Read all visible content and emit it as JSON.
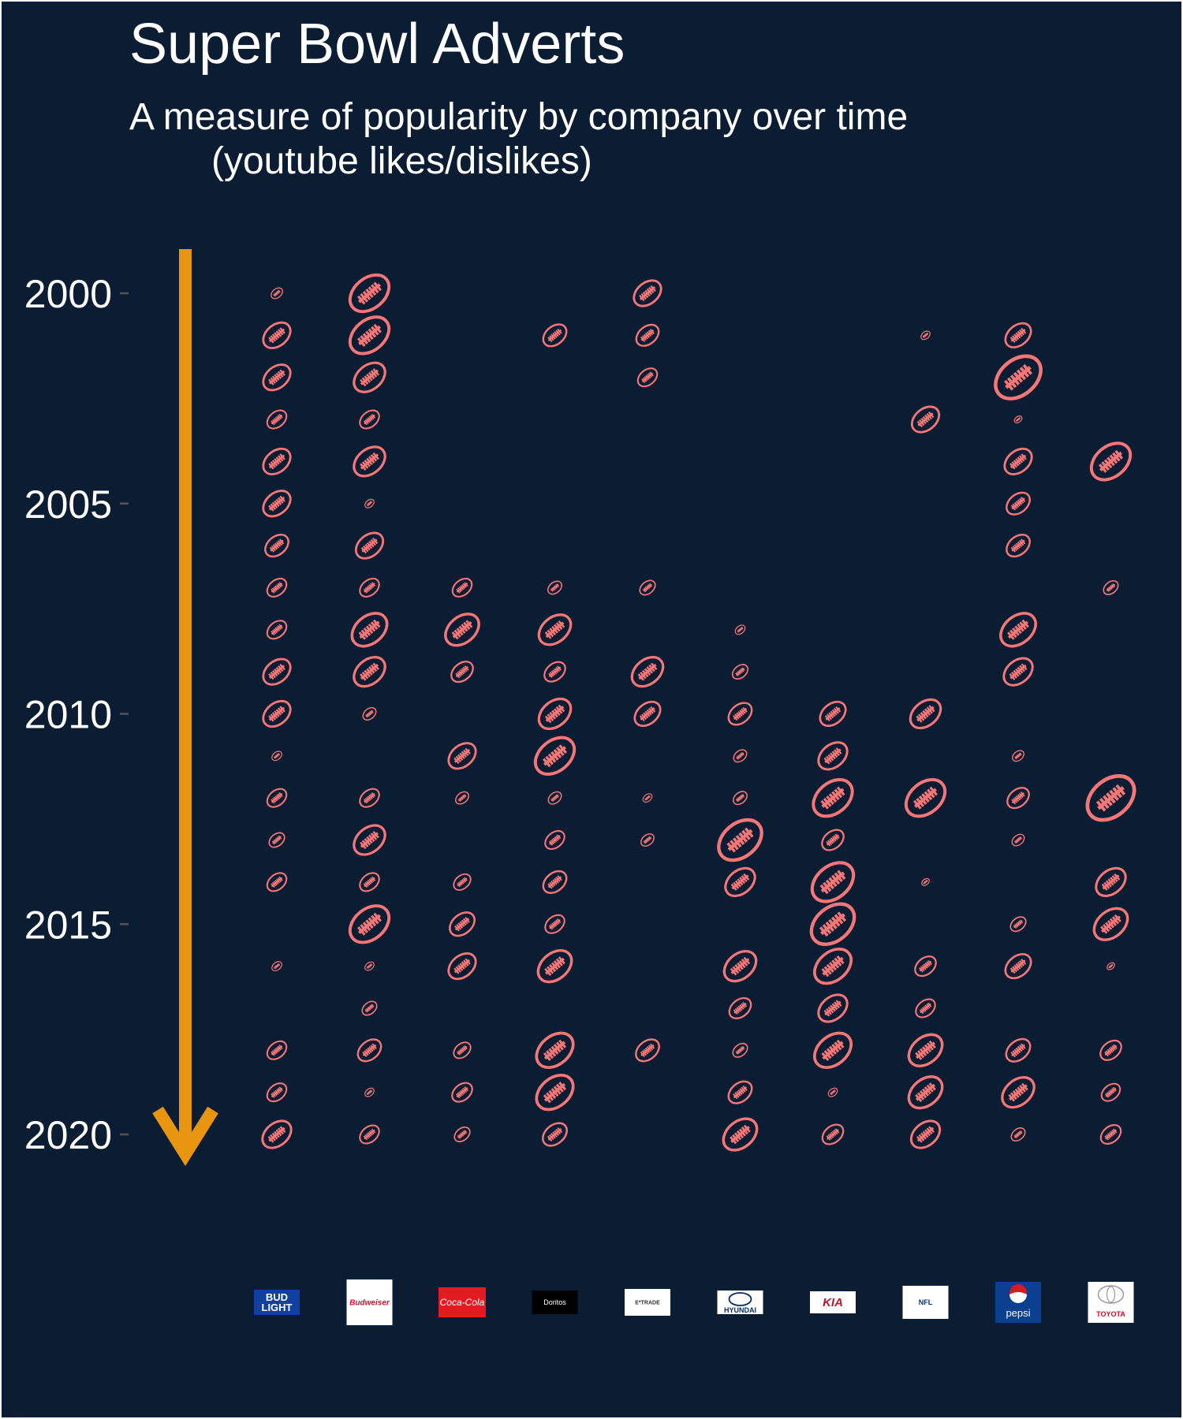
{
  "chart_data": {
    "type": "scatter",
    "title": "Super Bowl Adverts",
    "subtitle_line1": "A measure of popularity by company over time",
    "subtitle_line2": "(youtube likes/dislikes)",
    "y_axis": {
      "ticks": [
        2000,
        2005,
        2010,
        2015,
        2020
      ],
      "reversed": true,
      "ylim": [
        2000,
        2020
      ]
    },
    "marker": "american-football",
    "colors": {
      "background": "#0b1d33",
      "marker": "#f47676",
      "arrow": "#e8950f",
      "tick_text": "#ffffff",
      "tick_mark": "#555555"
    },
    "companies": [
      {
        "name": "Bud Light",
        "logo_text": [
          "BUD",
          "LIGHT"
        ],
        "points": [
          [
            2000,
            1
          ],
          [
            2001,
            3
          ],
          [
            2002,
            3
          ],
          [
            2003,
            2
          ],
          [
            2004,
            3
          ],
          [
            2005,
            3
          ],
          [
            2006,
            2.5
          ],
          [
            2007,
            2
          ],
          [
            2008,
            2
          ],
          [
            2009,
            3
          ],
          [
            2010,
            3
          ],
          [
            2011,
            0.8
          ],
          [
            2012,
            2
          ],
          [
            2013,
            1.5
          ],
          [
            2014,
            2
          ],
          [
            2016,
            0.8
          ],
          [
            2018,
            2
          ],
          [
            2019,
            2
          ],
          [
            2020,
            3.2
          ]
        ]
      },
      {
        "name": "Budweiser",
        "logo_text": [
          "Budweiser"
        ],
        "points": [
          [
            2000,
            4.5
          ],
          [
            2001,
            4.5
          ],
          [
            2002,
            3.5
          ],
          [
            2003,
            2
          ],
          [
            2004,
            3.5
          ],
          [
            2005,
            0.7
          ],
          [
            2006,
            3
          ],
          [
            2007,
            2
          ],
          [
            2008,
            4
          ],
          [
            2009,
            3.5
          ],
          [
            2010,
            1.2
          ],
          [
            2012,
            2
          ],
          [
            2013,
            3.5
          ],
          [
            2014,
            2
          ],
          [
            2015,
            4.5
          ],
          [
            2016,
            0.7
          ],
          [
            2017,
            1.4
          ],
          [
            2018,
            2.5
          ],
          [
            2019,
            0.7
          ],
          [
            2020,
            2
          ]
        ]
      },
      {
        "name": "Coca-Cola",
        "logo_text": [
          "Coca-Cola"
        ],
        "points": [
          [
            2007,
            2
          ],
          [
            2008,
            3.8
          ],
          [
            2009,
            2.3
          ],
          [
            2011,
            3
          ],
          [
            2012,
            1.2
          ],
          [
            2014,
            1.7
          ],
          [
            2015,
            2.7
          ],
          [
            2016,
            3
          ],
          [
            2018,
            1.7
          ],
          [
            2019,
            2.1
          ],
          [
            2020,
            1.5
          ]
        ]
      },
      {
        "name": "Doritos",
        "logo_text": [
          "Doritos"
        ],
        "points": [
          [
            2001,
            2.5
          ],
          [
            2007,
            1.3
          ],
          [
            2008,
            3.6
          ],
          [
            2009,
            2.2
          ],
          [
            2010,
            3.6
          ],
          [
            2011,
            4.5
          ],
          [
            2012,
            1.2
          ],
          [
            2013,
            2
          ],
          [
            2014,
            2.5
          ],
          [
            2015,
            2
          ],
          [
            2016,
            3.8
          ],
          [
            2018,
            4.2
          ],
          [
            2019,
            4.2
          ],
          [
            2020,
            2.6
          ]
        ]
      },
      {
        "name": "E*Trade",
        "logo_text": [
          "E*TRADE"
        ],
        "points": [
          [
            2000,
            3
          ],
          [
            2001,
            2.4
          ],
          [
            2002,
            2
          ],
          [
            2007,
            1.5
          ],
          [
            2009,
            3.5
          ],
          [
            2010,
            2.8
          ],
          [
            2012,
            0.7
          ],
          [
            2013,
            1.2
          ],
          [
            2018,
            2.5
          ]
        ]
      },
      {
        "name": "Hyundai",
        "logo_text": [
          "HYUNDAI"
        ],
        "points": [
          [
            2008,
            0.8
          ],
          [
            2009,
            1.5
          ],
          [
            2010,
            2.5
          ],
          [
            2011,
            1.2
          ],
          [
            2012,
            1.3
          ],
          [
            2013,
            5
          ],
          [
            2014,
            3.3
          ],
          [
            2016,
            3.6
          ],
          [
            2017,
            2.3
          ],
          [
            2018,
            1.4
          ],
          [
            2019,
            2.5
          ],
          [
            2020,
            3.8
          ]
        ]
      },
      {
        "name": "Kia",
        "logo_text": [
          "KIA"
        ],
        "points": [
          [
            2010,
            2.8
          ],
          [
            2011,
            3.2
          ],
          [
            2012,
            4.5
          ],
          [
            2013,
            2.3
          ],
          [
            2014,
            4.8
          ],
          [
            2015,
            5
          ],
          [
            2016,
            4.2
          ],
          [
            2017,
            3.2
          ],
          [
            2018,
            4.2
          ],
          [
            2019,
            0.7
          ],
          [
            2020,
            2.2
          ]
        ]
      },
      {
        "name": "NFL",
        "logo_text": [
          "NFL"
        ],
        "points": [
          [
            2001,
            0.7
          ],
          [
            2003,
            3
          ],
          [
            2010,
            3.4
          ],
          [
            2012,
            4.5
          ],
          [
            2014,
            0.5
          ],
          [
            2016,
            2.2
          ],
          [
            2017,
            2
          ],
          [
            2018,
            3.8
          ],
          [
            2019,
            3.8
          ],
          [
            2020,
            3.2
          ]
        ]
      },
      {
        "name": "Pepsi",
        "logo_text": [
          "pepsi"
        ],
        "points": [
          [
            2001,
            2.8
          ],
          [
            2002,
            5.3
          ],
          [
            2003,
            0.5
          ],
          [
            2004,
            3
          ],
          [
            2005,
            2.5
          ],
          [
            2006,
            2.5
          ],
          [
            2008,
            4
          ],
          [
            2009,
            3.2
          ],
          [
            2011,
            1
          ],
          [
            2012,
            2.3
          ],
          [
            2013,
            1.1
          ],
          [
            2015,
            1.5
          ],
          [
            2016,
            2.8
          ],
          [
            2018,
            2.6
          ],
          [
            2019,
            3.6
          ],
          [
            2020,
            1.3
          ]
        ]
      },
      {
        "name": "Toyota",
        "logo_text": [
          "TOYOTA"
        ],
        "points": [
          [
            2004,
            4.5
          ],
          [
            2007,
            1.4
          ],
          [
            2012,
            5.5
          ],
          [
            2014,
            3.3
          ],
          [
            2015,
            3.8
          ],
          [
            2016,
            0.5
          ],
          [
            2018,
            2.2
          ],
          [
            2019,
            1.9
          ],
          [
            2020,
            2.1
          ]
        ]
      }
    ]
  }
}
